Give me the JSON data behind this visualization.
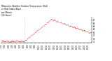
{
  "title_line1": "Milwaukee Weather Outdoor Temperature (Red)",
  "title_line2": "vs Heat Index (Blue)",
  "title_line3": "per Minute",
  "title_line4": "(24 Hours)",
  "line_color": "#ff0000",
  "background_color": "#ffffff",
  "ylim": [
    70,
    95
  ],
  "xlim": [
    0,
    1440
  ],
  "yticks": [
    71,
    74,
    77,
    80,
    83,
    86,
    89,
    92
  ],
  "xtick_interval": 60,
  "n_minutes": 1440,
  "vline_x": 370,
  "peak_minute": 800,
  "flat_temp": 71.2,
  "peak_temp": 92.5,
  "end_temp": 79.0,
  "title_fontsize": 2.0,
  "tick_fontsize": 1.8,
  "linewidth": 0.55
}
